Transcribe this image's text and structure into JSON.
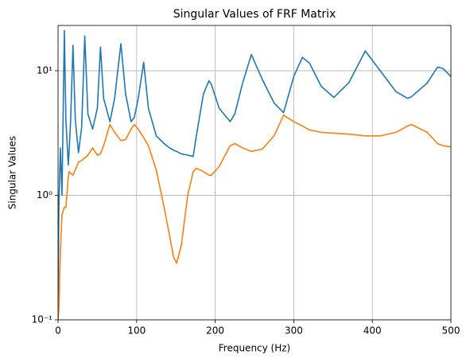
{
  "chart_data": {
    "type": "line",
    "title": "Singular Values of FRF Matrix",
    "x_label": "Frequency (Hz)",
    "y_label": "Singular Values",
    "x": [
      0,
      1,
      3,
      5,
      8,
      10,
      13,
      14,
      16,
      19,
      22,
      26,
      30,
      34,
      38,
      44,
      50,
      54,
      58,
      66,
      72,
      80,
      86,
      93,
      97,
      102,
      109,
      115,
      125,
      135,
      140,
      147,
      151,
      157,
      165,
      172,
      176,
      185,
      192,
      195,
      205,
      219,
      225,
      235,
      246,
      260,
      275,
      287,
      300,
      311,
      320,
      335,
      351,
      370,
      391,
      410,
      430,
      445,
      450,
      470,
      483,
      490,
      500
    ],
    "series": [
      {
        "color": "#1f77b4",
        "values": [
          0.12,
          0.8,
          2.4,
          1.0,
          21,
          4,
          1.75,
          2.2,
          4,
          16,
          4,
          2.2,
          3.5,
          19,
          4.5,
          3.4,
          5,
          15.5,
          6,
          3.9,
          6,
          16.5,
          6.5,
          3.9,
          4.2,
          6,
          11.7,
          5,
          3.0,
          2.6,
          2.45,
          2.3,
          2.25,
          2.15,
          2.1,
          2.05,
          3.0,
          6.5,
          8.3,
          7.8,
          5,
          3.9,
          4.5,
          8,
          13.5,
          8.5,
          5.5,
          4.6,
          9,
          12.8,
          11.5,
          7.5,
          6.1,
          8,
          14.4,
          10,
          6.8,
          6.0,
          6.2,
          8,
          10.7,
          10.4,
          9.0
        ]
      },
      {
        "color": "#ff7f0e",
        "values": [
          0.1,
          0.12,
          0.35,
          0.7,
          0.8,
          0.8,
          1.4,
          1.55,
          1.5,
          1.45,
          1.6,
          1.85,
          1.9,
          2.0,
          2.1,
          2.4,
          2.1,
          2.15,
          2.5,
          3.7,
          3.2,
          2.75,
          2.8,
          3.4,
          3.7,
          3.4,
          2.9,
          2.5,
          1.6,
          0.8,
          0.55,
          0.32,
          0.285,
          0.4,
          1.0,
          1.55,
          1.65,
          1.55,
          1.45,
          1.45,
          1.7,
          2.5,
          2.6,
          2.4,
          2.25,
          2.35,
          3.0,
          4.4,
          3.9,
          3.6,
          3.35,
          3.2,
          3.15,
          3.1,
          3.0,
          3.0,
          3.2,
          3.6,
          3.7,
          3.2,
          2.6,
          2.5,
          2.45
        ]
      }
    ],
    "xlim": [
      0,
      500
    ],
    "xticks": [
      0,
      100,
      200,
      300,
      400,
      500
    ],
    "ylim": [
      0.1,
      23.1
    ],
    "y_log_scale": true,
    "yticks": [
      {
        "value": 0.1,
        "label": "10⁻¹"
      },
      {
        "value": 1,
        "label": "10⁰"
      },
      {
        "value": 10,
        "label": "10¹"
      }
    ],
    "grid": true
  }
}
